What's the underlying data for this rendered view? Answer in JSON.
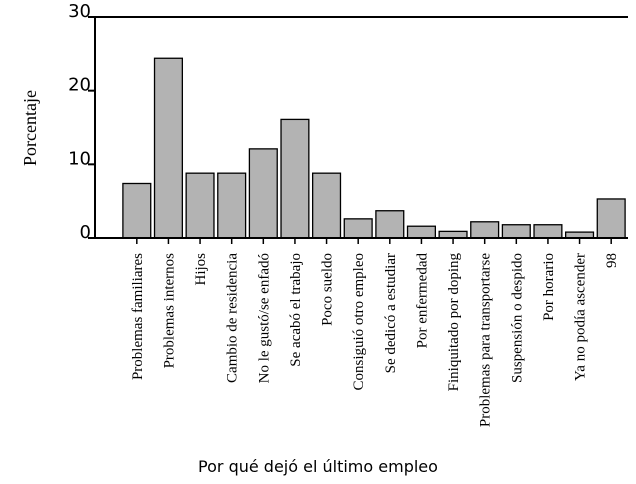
{
  "chart_data": {
    "type": "bar",
    "x_label": "Por qué dejó el último empleo",
    "y_label": "Porcentaje",
    "categories": [
      "Problemas familiares",
      "Problemas internos",
      "Hijos",
      "Cambio de residencia",
      "No le gustó/se enfadó",
      "Se acabó el trabajo",
      "Poco sueldo",
      "Consiguió otro empleo",
      "Se dedicó a estudiar",
      "Por enfermedad",
      "Finiquitado por doping",
      "Problemas para transportarse",
      "Suspensión o despido",
      "Por horario",
      "Ya no podía ascender",
      "98"
    ],
    "values": [
      7.4,
      24.4,
      8.8,
      8.8,
      12.1,
      16.1,
      8.8,
      2.6,
      3.7,
      1.6,
      0.9,
      2.2,
      1.8,
      1.8,
      0.8,
      5.3
    ],
    "color": "#b3b3b3",
    "ylim": [
      0,
      30
    ],
    "yticks": [
      0,
      10,
      20,
      30
    ]
  }
}
